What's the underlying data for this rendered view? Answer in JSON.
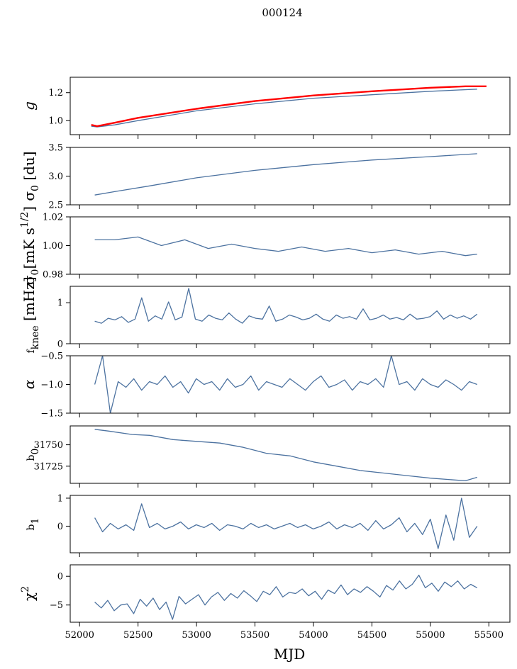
{
  "title": "000124",
  "xlabel": "MJD",
  "colors": {
    "line": "#4c72a0",
    "highlight": "#ff0000",
    "axis": "#000000"
  },
  "chart_data": [
    {
      "type": "line",
      "id": "g",
      "ylabel": "g",
      "ylim": [
        0.9,
        1.31
      ],
      "yticks": [
        1.0,
        1.2
      ],
      "ytick_labels": [
        "1.0",
        "1.2"
      ],
      "series": [
        {
          "name": "g",
          "color": "#4c72a0",
          "x": [
            52100,
            52150,
            52300,
            52500,
            53000,
            53500,
            54000,
            54500,
            55000,
            55400
          ],
          "values": [
            0.96,
            0.955,
            0.97,
            1.0,
            1.07,
            1.12,
            1.16,
            1.185,
            1.21,
            1.225
          ]
        },
        {
          "name": "g fit",
          "color": "#ff0000",
          "x": [
            52100,
            52150,
            52300,
            52500,
            53000,
            53500,
            54000,
            54500,
            55000,
            55300,
            55480
          ],
          "values": [
            0.97,
            0.96,
            0.985,
            1.02,
            1.085,
            1.14,
            1.18,
            1.21,
            1.235,
            1.245,
            1.245
          ]
        }
      ]
    },
    {
      "type": "line",
      "id": "sigma0_du",
      "ylabel": "σ₀ [du]",
      "ylim": [
        2.5,
        3.5
      ],
      "yticks": [
        2.5,
        3.0,
        3.5
      ],
      "ytick_labels": [
        "2.5",
        "3.0",
        "3.5"
      ],
      "series": [
        {
          "name": "sigma0",
          "color": "#4c72a0",
          "x": [
            52130,
            52300,
            52600,
            53000,
            53500,
            54000,
            54500,
            55000,
            55400
          ],
          "values": [
            2.67,
            2.73,
            2.83,
            2.97,
            3.1,
            3.2,
            3.28,
            3.34,
            3.39
          ]
        }
      ]
    },
    {
      "type": "line",
      "id": "sigma0_mk",
      "ylabel": "σ₀[mK s^1/2]",
      "ylim": [
        0.98,
        1.02
      ],
      "yticks": [
        0.98,
        1.0,
        1.02
      ],
      "ytick_labels": [
        "0.98",
        "1.00",
        "1.02"
      ],
      "series": [
        {
          "name": "sigma0_mk",
          "color": "#4c72a0",
          "x": [
            52130,
            52300,
            52500,
            52700,
            52900,
            53100,
            53300,
            53500,
            53700,
            53900,
            54100,
            54300,
            54500,
            54700,
            54900,
            55100,
            55300,
            55400
          ],
          "values": [
            1.004,
            1.004,
            1.006,
            1.0,
            1.004,
            0.998,
            1.001,
            0.998,
            0.996,
            0.999,
            0.996,
            0.998,
            0.995,
            0.997,
            0.994,
            0.996,
            0.993,
            0.994
          ]
        }
      ]
    },
    {
      "type": "line",
      "id": "fknee",
      "ylabel": "f_knee [mHz]",
      "ylim": [
        0,
        1.4
      ],
      "yticks": [
        0,
        1
      ],
      "ytick_labels": [
        "0",
        "1"
      ],
      "series": [
        {
          "name": "fknee",
          "color": "#4c72a0",
          "x_start": 52130,
          "x_end": 55400,
          "values": [
            0.55,
            0.5,
            0.62,
            0.58,
            0.66,
            0.52,
            0.6,
            1.12,
            0.55,
            0.68,
            0.6,
            1.02,
            0.58,
            0.65,
            1.35,
            0.6,
            0.55,
            0.7,
            0.62,
            0.58,
            0.75,
            0.6,
            0.5,
            0.68,
            0.62,
            0.6,
            0.92,
            0.55,
            0.6,
            0.7,
            0.65,
            0.58,
            0.62,
            0.72,
            0.6,
            0.55,
            0.7,
            0.62,
            0.66,
            0.6,
            0.85,
            0.58,
            0.62,
            0.7,
            0.6,
            0.64,
            0.58,
            0.72,
            0.6,
            0.62,
            0.66,
            0.8,
            0.6,
            0.7,
            0.62,
            0.68,
            0.6,
            0.72
          ]
        }
      ]
    },
    {
      "type": "line",
      "id": "alpha",
      "ylabel": "α",
      "ylim": [
        -1.5,
        -0.5
      ],
      "yticks": [
        -1.5,
        -1.0,
        -0.5
      ],
      "ytick_labels": [
        "−1.5",
        "−1.0",
        "−0.5"
      ],
      "series": [
        {
          "name": "alpha",
          "color": "#4c72a0",
          "x_start": 52130,
          "x_end": 55400,
          "values": [
            -1.0,
            -0.5,
            -1.5,
            -0.95,
            -1.05,
            -0.9,
            -1.1,
            -0.95,
            -1.0,
            -0.85,
            -1.05,
            -0.95,
            -1.15,
            -0.9,
            -1.0,
            -0.95,
            -1.1,
            -0.9,
            -1.05,
            -1.0,
            -0.85,
            -1.1,
            -0.95,
            -1.0,
            -1.05,
            -0.9,
            -1.0,
            -1.1,
            -0.95,
            -0.85,
            -1.05,
            -1.0,
            -0.92,
            -1.1,
            -0.95,
            -1.0,
            -0.9,
            -1.05,
            -0.5,
            -1.0,
            -0.95,
            -1.1,
            -0.9,
            -1.0,
            -1.05,
            -0.92,
            -1.0,
            -1.1,
            -0.95,
            -1.0
          ]
        }
      ]
    },
    {
      "type": "line",
      "id": "b0",
      "ylabel": "b₀",
      "ylim": [
        31705,
        31772
      ],
      "yticks": [
        31725,
        31750
      ],
      "ytick_labels": [
        "31725",
        "31750"
      ],
      "series": [
        {
          "name": "b0",
          "color": "#4c72a0",
          "x": [
            52130,
            52250,
            52450,
            52600,
            52800,
            53000,
            53200,
            53400,
            53600,
            53800,
            54000,
            54200,
            54400,
            54600,
            54800,
            55000,
            55200,
            55300,
            55400
          ],
          "values": [
            31768,
            31766,
            31762,
            31761,
            31756,
            31754,
            31752,
            31747,
            31740,
            31737,
            31730,
            31725,
            31720,
            31717,
            31714,
            31711,
            31709,
            31708,
            31712
          ]
        }
      ]
    },
    {
      "type": "line",
      "id": "b1",
      "ylabel": "b₁",
      "ylim": [
        -0.95,
        1.1
      ],
      "yticks": [
        0,
        1
      ],
      "ytick_labels": [
        "0",
        "1"
      ],
      "series": [
        {
          "name": "b1",
          "color": "#4c72a0",
          "x_start": 52130,
          "x_end": 55400,
          "values": [
            0.3,
            -0.2,
            0.1,
            -0.1,
            0.05,
            -0.15,
            0.8,
            -0.05,
            0.1,
            -0.1,
            0.0,
            0.15,
            -0.1,
            0.05,
            -0.05,
            0.1,
            -0.15,
            0.05,
            0.0,
            -0.1,
            0.1,
            -0.05,
            0.05,
            -0.1,
            0.0,
            0.1,
            -0.05,
            0.05,
            -0.1,
            0.0,
            0.15,
            -0.1,
            0.05,
            -0.05,
            0.1,
            -0.15,
            0.2,
            -0.1,
            0.05,
            0.3,
            -0.2,
            0.1,
            -0.3,
            0.25,
            -0.8,
            0.4,
            -0.5,
            1.0,
            -0.4,
            0.0
          ]
        }
      ]
    },
    {
      "type": "line",
      "id": "chi2",
      "ylabel": "χ²",
      "ylim": [
        -8,
        2
      ],
      "yticks": [
        -5,
        0
      ],
      "ytick_labels": [
        "−5",
        "0"
      ],
      "xticks": [
        52000,
        52500,
        53000,
        53500,
        54000,
        54500,
        55000,
        55500
      ],
      "xtick_labels": [
        "52000",
        "52500",
        "53000",
        "53500",
        "54000",
        "54500",
        "55000",
        "55500"
      ],
      "xlim": [
        51920,
        55680
      ],
      "series": [
        {
          "name": "chi2",
          "color": "#4c72a0",
          "x_start": 52130,
          "x_end": 55400,
          "values": [
            -4.5,
            -5.5,
            -4.2,
            -6.0,
            -5.0,
            -4.8,
            -6.5,
            -4.0,
            -5.2,
            -3.8,
            -5.8,
            -4.5,
            -7.5,
            -3.5,
            -4.8,
            -4.0,
            -3.2,
            -5.0,
            -3.6,
            -2.8,
            -4.2,
            -3.0,
            -3.8,
            -2.5,
            -3.4,
            -4.4,
            -2.6,
            -3.2,
            -1.8,
            -3.6,
            -2.8,
            -3.0,
            -2.2,
            -3.4,
            -2.6,
            -4.0,
            -2.4,
            -3.0,
            -1.5,
            -3.2,
            -2.2,
            -2.8,
            -1.8,
            -2.6,
            -3.6,
            -1.6,
            -2.4,
            -0.8,
            -2.2,
            -1.4,
            0.2,
            -2.0,
            -1.2,
            -2.6,
            -1.0,
            -1.8,
            -0.8,
            -2.2,
            -1.4,
            -2.0
          ]
        }
      ]
    }
  ]
}
